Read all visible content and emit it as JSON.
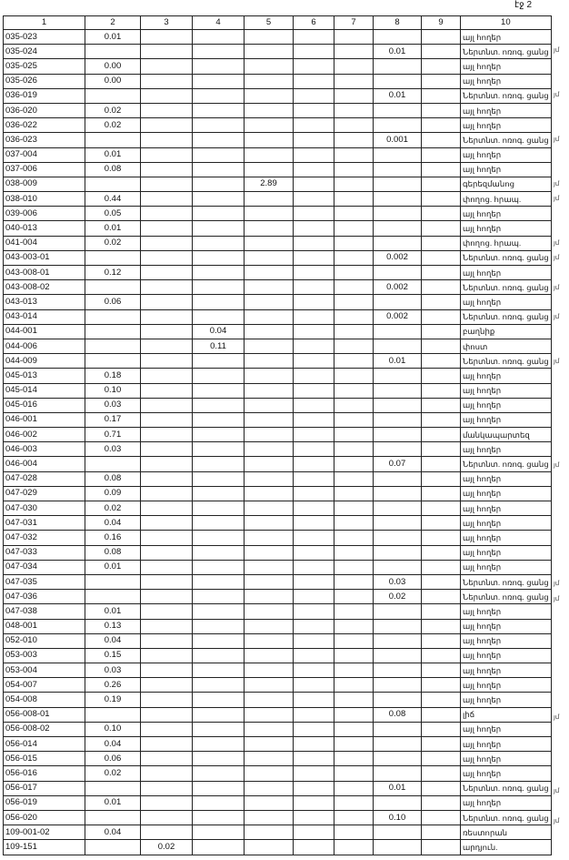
{
  "page_label": "էջ 2",
  "headers": [
    "1",
    "2",
    "3",
    "4",
    "5",
    "6",
    "7",
    "8",
    "9",
    "10"
  ],
  "rows": [
    [
      "035-023",
      "0.01",
      "",
      "",
      "",
      "",
      "",
      "",
      "",
      "այլ հողեր",
      ""
    ],
    [
      "035-024",
      "",
      "",
      "",
      "",
      "",
      "",
      "0.01",
      "",
      "Ներտնտ. ոռոգ. ցանց",
      "յմ"
    ],
    [
      "035-025",
      "0.00",
      "",
      "",
      "",
      "",
      "",
      "",
      "",
      "այլ հողեր",
      ""
    ],
    [
      "035-026",
      "0.00",
      "",
      "",
      "",
      "",
      "",
      "",
      "",
      "այլ հողեր",
      ""
    ],
    [
      "036-019",
      "",
      "",
      "",
      "",
      "",
      "",
      "0.01",
      "",
      "Ներտնտ. ոռոգ. ցանց",
      "յմ"
    ],
    [
      "036-020",
      "0.02",
      "",
      "",
      "",
      "",
      "",
      "",
      "",
      "այլ հողեր",
      ""
    ],
    [
      "036-022",
      "0.02",
      "",
      "",
      "",
      "",
      "",
      "",
      "",
      "այլ հողեր",
      ""
    ],
    [
      "036-023",
      "",
      "",
      "",
      "",
      "",
      "",
      "0.001",
      "",
      "Ներտնտ. ոռոգ. ցանց",
      "յմ"
    ],
    [
      "037-004",
      "0.01",
      "",
      "",
      "",
      "",
      "",
      "",
      "",
      "այլ հողեր",
      ""
    ],
    [
      "037-006",
      "0.08",
      "",
      "",
      "",
      "",
      "",
      "",
      "",
      "այլ հողեր",
      ""
    ],
    [
      "038-009",
      "",
      "",
      "",
      "2.89",
      "",
      "",
      "",
      "",
      "գերեզմանոց",
      "յմ"
    ],
    [
      "038-010",
      "0.44",
      "",
      "",
      "",
      "",
      "",
      "",
      "",
      "փողոց. հրապ.",
      "յմ"
    ],
    [
      "039-006",
      "0.05",
      "",
      "",
      "",
      "",
      "",
      "",
      "",
      "այլ հողեր",
      ""
    ],
    [
      "040-013",
      "0.01",
      "",
      "",
      "",
      "",
      "",
      "",
      "",
      "այլ հողեր",
      ""
    ],
    [
      "041-004",
      "0.02",
      "",
      "",
      "",
      "",
      "",
      "",
      "",
      "փողոց. հրապ.",
      "յմ"
    ],
    [
      "043-003-01",
      "",
      "",
      "",
      "",
      "",
      "",
      "0.002",
      "",
      "Ներտնտ. ոռոգ. ցանց",
      "յմ"
    ],
    [
      "043-008-01",
      "0.12",
      "",
      "",
      "",
      "",
      "",
      "",
      "",
      "այլ հողեր",
      ""
    ],
    [
      "043-008-02",
      "",
      "",
      "",
      "",
      "",
      "",
      "0.002",
      "",
      "Ներտնտ. ոռոգ. ցանց",
      "յմ"
    ],
    [
      "043-013",
      "0.06",
      "",
      "",
      "",
      "",
      "",
      "",
      "",
      "այլ հողեր",
      ""
    ],
    [
      "043-014",
      "",
      "",
      "",
      "",
      "",
      "",
      "0.002",
      "",
      "Ներտնտ. ոռոգ. ցանց",
      "յմ"
    ],
    [
      "044-001",
      "",
      "",
      "0.04",
      "",
      "",
      "",
      "",
      "",
      "բաղնիք",
      ""
    ],
    [
      "044-006",
      "",
      "",
      "0.11",
      "",
      "",
      "",
      "",
      "",
      "փոստ",
      ""
    ],
    [
      "044-009",
      "",
      "",
      "",
      "",
      "",
      "",
      "0.01",
      "",
      "Ներտնտ. ոռոգ. ցանց",
      "յմ"
    ],
    [
      "045-013",
      "0.18",
      "",
      "",
      "",
      "",
      "",
      "",
      "",
      "այլ հողեր",
      ""
    ],
    [
      "045-014",
      "0.10",
      "",
      "",
      "",
      "",
      "",
      "",
      "",
      "այլ հողեր",
      ""
    ],
    [
      "045-016",
      "0.03",
      "",
      "",
      "",
      "",
      "",
      "",
      "",
      "այլ հողեր",
      ""
    ],
    [
      "046-001",
      "0.17",
      "",
      "",
      "",
      "",
      "",
      "",
      "",
      "այլ հողեր",
      ""
    ],
    [
      "046-002",
      "0.71",
      "",
      "",
      "",
      "",
      "",
      "",
      "",
      "մանկապարտեզ",
      ""
    ],
    [
      "046-003",
      "0.03",
      "",
      "",
      "",
      "",
      "",
      "",
      "",
      "այլ հողեր",
      ""
    ],
    [
      "046-004",
      "",
      "",
      "",
      "",
      "",
      "",
      "0.07",
      "",
      "Ներտնտ. ոռոգ. ցանց",
      "յմ"
    ],
    [
      "047-028",
      "0.08",
      "",
      "",
      "",
      "",
      "",
      "",
      "",
      "այլ հողեր",
      ""
    ],
    [
      "047-029",
      "0.09",
      "",
      "",
      "",
      "",
      "",
      "",
      "",
      "այլ հողեր",
      ""
    ],
    [
      "047-030",
      "0.02",
      "",
      "",
      "",
      "",
      "",
      "",
      "",
      "այլ հողեր",
      ""
    ],
    [
      "047-031",
      "0.04",
      "",
      "",
      "",
      "",
      "",
      "",
      "",
      "այլ հողեր",
      ""
    ],
    [
      "047-032",
      "0.16",
      "",
      "",
      "",
      "",
      "",
      "",
      "",
      "այլ հողեր",
      ""
    ],
    [
      "047-033",
      "0.08",
      "",
      "",
      "",
      "",
      "",
      "",
      "",
      "այլ հողեր",
      ""
    ],
    [
      "047-034",
      "0.01",
      "",
      "",
      "",
      "",
      "",
      "",
      "",
      "այլ հողեր",
      ""
    ],
    [
      "047-035",
      "",
      "",
      "",
      "",
      "",
      "",
      "0.03",
      "",
      "Ներտնտ. ոռոգ. ցանց",
      "յմ"
    ],
    [
      "047-036",
      "",
      "",
      "",
      "",
      "",
      "",
      "0.02",
      "",
      "Ներտնտ. ոռոգ. ցանց",
      "յմ"
    ],
    [
      "047-038",
      "0.01",
      "",
      "",
      "",
      "",
      "",
      "",
      "",
      "այլ հողեր",
      ""
    ],
    [
      "048-001",
      "0.13",
      "",
      "",
      "",
      "",
      "",
      "",
      "",
      "այլ հողեր",
      ""
    ],
    [
      "052-010",
      "0.04",
      "",
      "",
      "",
      "",
      "",
      "",
      "",
      "այլ հողեր",
      ""
    ],
    [
      "053-003",
      "0.15",
      "",
      "",
      "",
      "",
      "",
      "",
      "",
      "այլ հողեր",
      ""
    ],
    [
      "053-004",
      "0.03",
      "",
      "",
      "",
      "",
      "",
      "",
      "",
      "այլ հողեր",
      ""
    ],
    [
      "054-007",
      "0.26",
      "",
      "",
      "",
      "",
      "",
      "",
      "",
      "այլ հողեր",
      ""
    ],
    [
      "054-008",
      "0.19",
      "",
      "",
      "",
      "",
      "",
      "",
      "",
      "այլ հողեր",
      ""
    ],
    [
      "056-008-01",
      "",
      "",
      "",
      "",
      "",
      "",
      "0.08",
      "",
      "լիճ",
      "յմ"
    ],
    [
      "056-008-02",
      "0.10",
      "",
      "",
      "",
      "",
      "",
      "",
      "",
      "այլ հողեր",
      ""
    ],
    [
      "056-014",
      "0.04",
      "",
      "",
      "",
      "",
      "",
      "",
      "",
      "այլ հողեր",
      ""
    ],
    [
      "056-015",
      "0.06",
      "",
      "",
      "",
      "",
      "",
      "",
      "",
      "այլ հողեր",
      ""
    ],
    [
      "056-016",
      "0.02",
      "",
      "",
      "",
      "",
      "",
      "",
      "",
      "այլ հողեր",
      ""
    ],
    [
      "056-017",
      "",
      "",
      "",
      "",
      "",
      "",
      "0.01",
      "",
      "Ներտնտ. ոռոգ. ցանց",
      "յմ"
    ],
    [
      "056-019",
      "0.01",
      "",
      "",
      "",
      "",
      "",
      "",
      "",
      "այլ հողեր",
      ""
    ],
    [
      "056-020",
      "",
      "",
      "",
      "",
      "",
      "",
      "0.10",
      "",
      "Ներտնտ. ոռոգ. ցանց",
      "յմ"
    ],
    [
      "109-001-02",
      "0.04",
      "",
      "",
      "",
      "",
      "",
      "",
      "",
      "ռեստորան",
      ""
    ],
    [
      "109-151",
      "",
      "0.02",
      "",
      "",
      "",
      "",
      "",
      "",
      "արդյուն.",
      ""
    ]
  ]
}
